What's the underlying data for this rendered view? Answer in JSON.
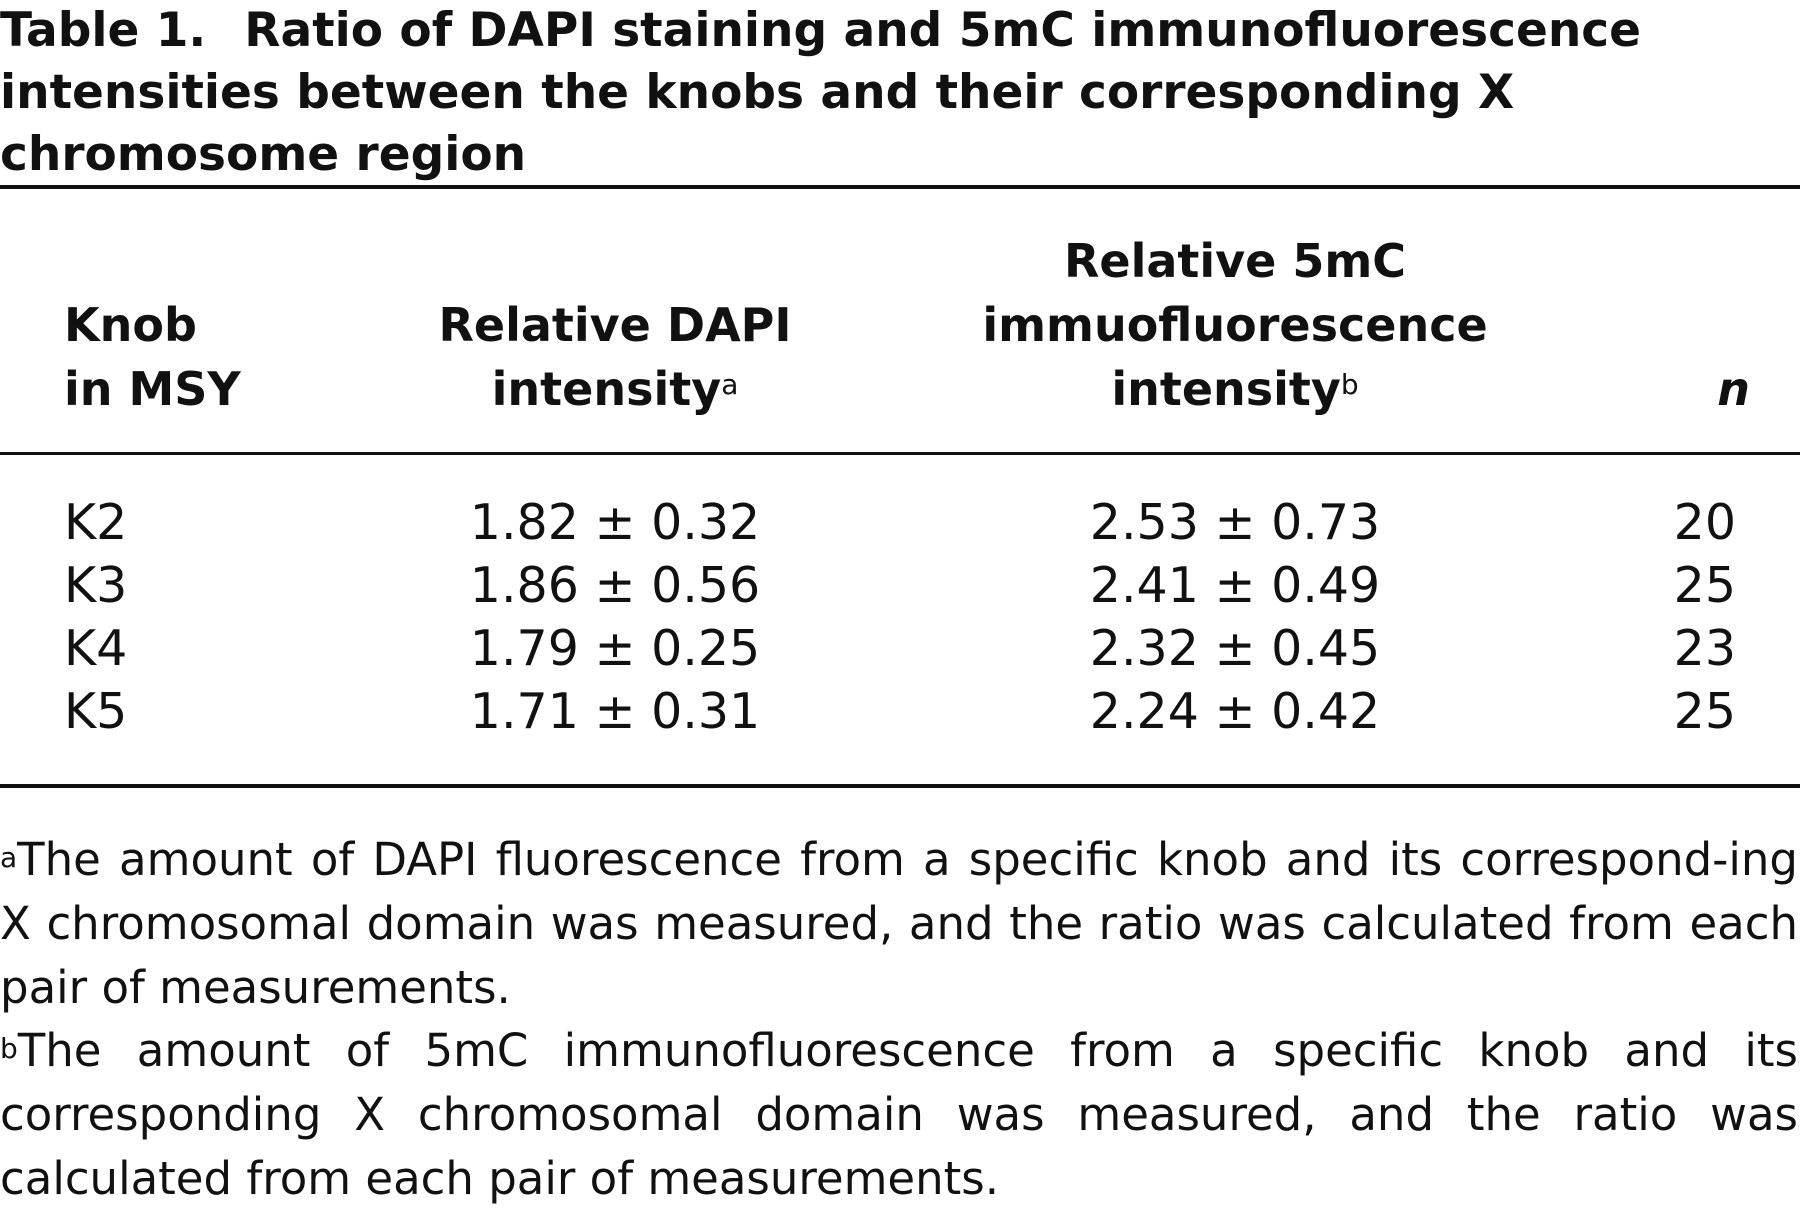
{
  "table": {
    "label": "Table 1.",
    "title": "Ratio of DAPI staining and 5mC immunofluorescence intensities between the knobs and their corresponding X chromosome region",
    "columns": {
      "knob_line1": "Knob",
      "knob_line2": "in MSY",
      "dapi_line1": "Relative DAPI",
      "dapi_line2": "intensity",
      "dapi_mark": "a",
      "mc_line1": "Relative 5mC",
      "mc_line2": "immuofluorescence",
      "mc_line3": "intensity",
      "mc_mark": "b",
      "n": "n"
    },
    "rows": [
      {
        "knob": "K2",
        "dapi": "1.82 ± 0.32",
        "mc": "2.53 ± 0.73",
        "n": "20"
      },
      {
        "knob": "K3",
        "dapi": "1.86 ± 0.56",
        "mc": "2.41 ± 0.49",
        "n": "25"
      },
      {
        "knob": "K4",
        "dapi": "1.79 ± 0.25",
        "mc": "2.32 ± 0.45",
        "n": "23"
      },
      {
        "knob": "K5",
        "dapi": "1.71 ± 0.31",
        "mc": "2.24 ± 0.42",
        "n": "25"
      }
    ],
    "footnotes": {
      "a_mark": "a",
      "a_text": "The amount of DAPI fluorescence from a specific knob and its correspond-ing X chromosomal domain was measured, and the ratio was calculated from each pair of measurements.",
      "b_mark": "b",
      "b_text": "The amount of 5mC immunofluorescence from a specific knob and its corresponding X chromosomal domain was measured, and the ratio was calculated from each pair of measurements."
    }
  }
}
